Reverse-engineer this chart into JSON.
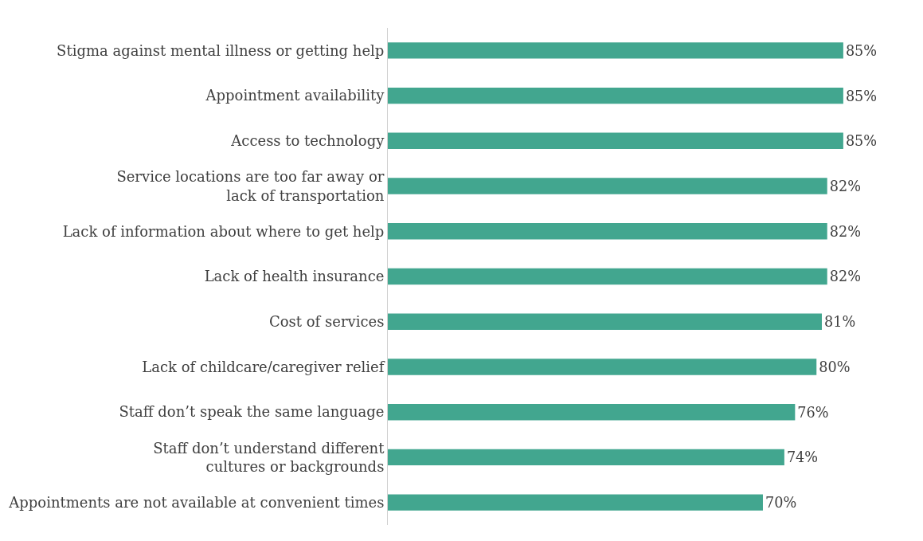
{
  "chart_data": {
    "type": "bar",
    "orientation": "horizontal",
    "categories": [
      "Stigma against mental illness or getting help",
      "Appointment availability",
      "Access to technology",
      "Service locations are too far away or\nlack of transportation",
      "Lack of information about where to get help",
      "Lack of health insurance",
      "Cost of services",
      "Lack of childcare/caregiver relief",
      "Staff don’t speak the same language",
      "Staff don’t understand different\ncultures or backgrounds",
      "Appointments are not available at convenient times"
    ],
    "values": [
      85,
      85,
      85,
      82,
      82,
      82,
      81,
      80,
      76,
      74,
      70
    ],
    "value_labels": [
      "85%",
      "85%",
      "85%",
      "82%",
      "82%",
      "82%",
      "81%",
      "80%",
      "76%",
      "74%",
      "70%"
    ],
    "color": "#42a68f"
  }
}
